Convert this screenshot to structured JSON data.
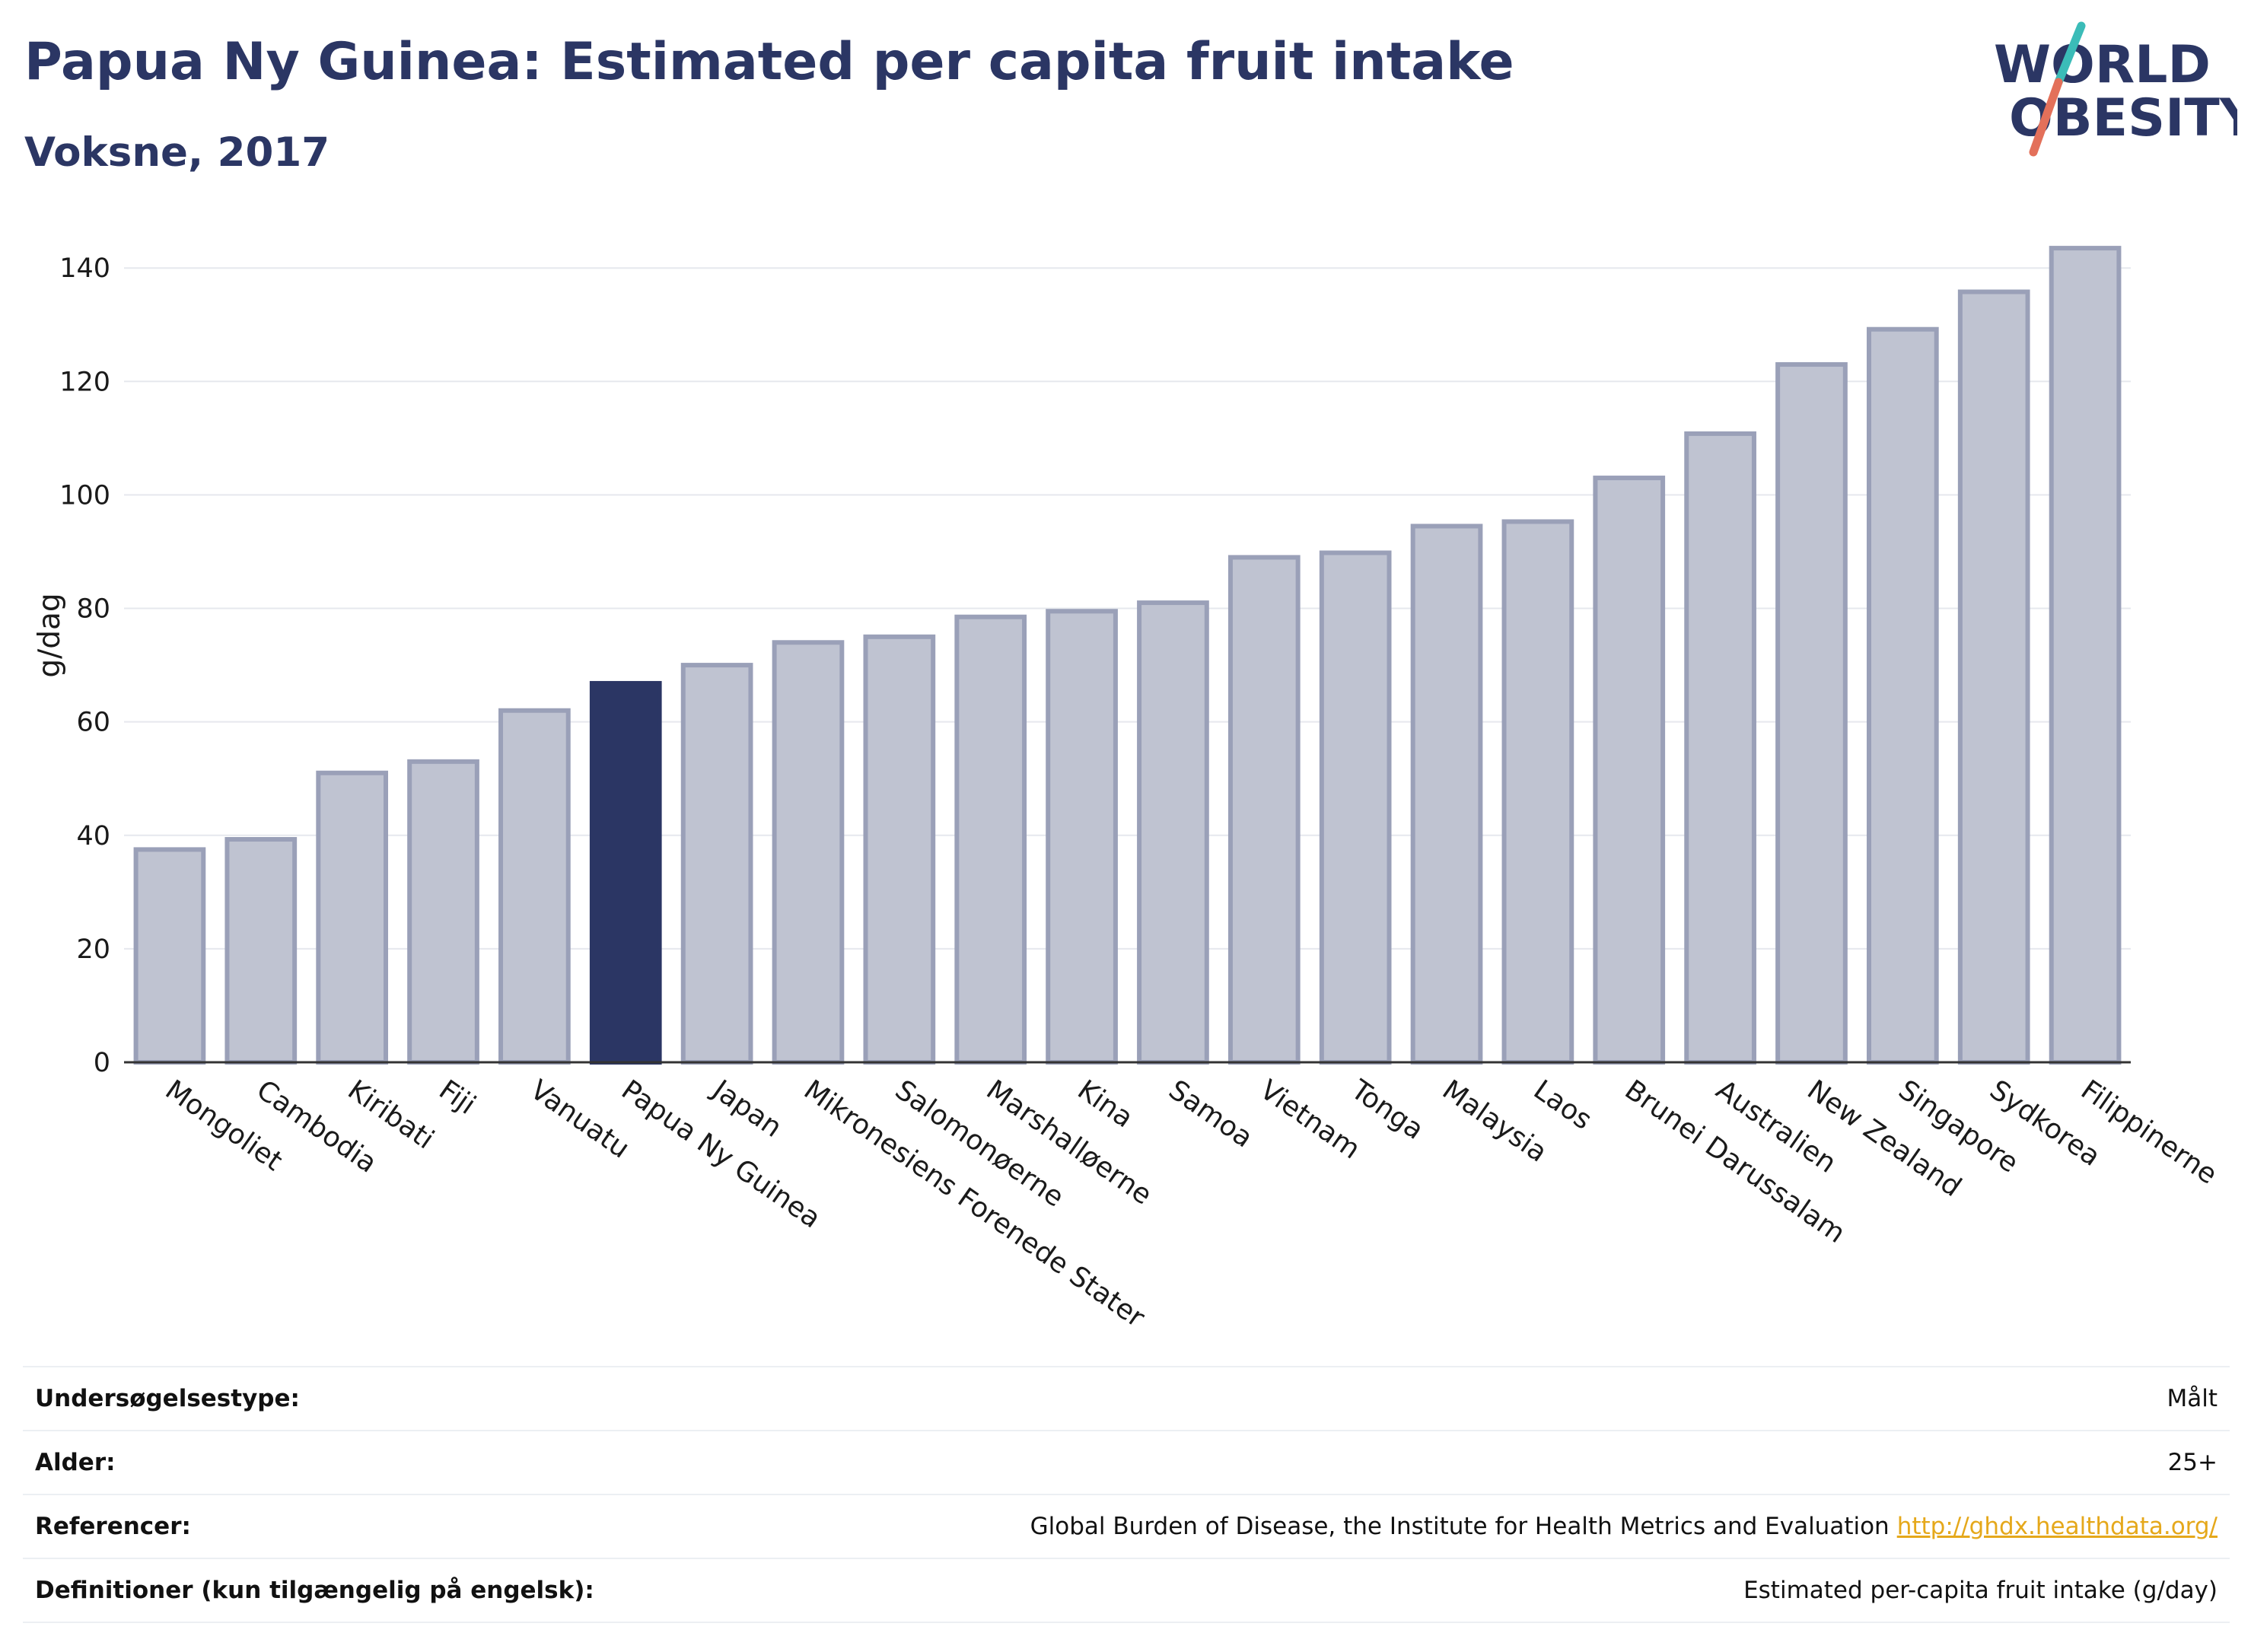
{
  "header": {
    "title": "Papua Ny Guinea: Estimated per capita fruit intake",
    "subtitle": "Voksne, 2017"
  },
  "logo": {
    "line1": "WORLD",
    "line2": "OBESITY",
    "colors": {
      "text": "#2b3664",
      "slash_teal": "#3bbcb8",
      "slash_red": "#e3705a"
    }
  },
  "colors": {
    "bar": "#bfc3d1",
    "bar_border": "#9aa0b8",
    "highlight": "#2b3664",
    "grid": "#e6e8ee",
    "link": "#e5a81b"
  },
  "chart_data": {
    "type": "bar",
    "title": "Papua Ny Guinea: Estimated per capita fruit intake",
    "subtitle": "Voksne, 2017",
    "ylabel": "g/dag",
    "ylim": [
      0,
      147
    ],
    "yticks": [
      0,
      20,
      40,
      60,
      80,
      100,
      120,
      140
    ],
    "grid": true,
    "highlight": "Papua Ny Guinea",
    "categories": [
      "Mongoliet",
      "Cambodia",
      "Kiribati",
      "Fiji",
      "Vanuatu",
      "Papua Ny Guinea",
      "Japan",
      "Mikronesiens Forenede Stater",
      "Salomonøerne",
      "Marshalløerne",
      "Kina",
      "Samoa",
      "Vietnam",
      "Tonga",
      "Malaysia",
      "Laos",
      "Brunei Darussalam",
      "Australien",
      "New Zealand",
      "Singapore",
      "Sydkorea",
      "Filippinerne"
    ],
    "values": [
      37.5,
      39.3,
      51,
      53,
      62,
      66.8,
      70,
      74,
      75,
      78.5,
      79.5,
      81,
      89,
      89.8,
      94.5,
      95.3,
      103,
      110.8,
      123,
      129.2,
      135.8,
      143.5
    ]
  },
  "meta": [
    {
      "label": "Undersøgelsestype:",
      "value": "Målt"
    },
    {
      "label": "Alder:",
      "value": "25+"
    },
    {
      "label": "Referencer:",
      "value": "Global Burden of Disease, the Institute for Health Metrics and Evaluation",
      "link": "http://ghdx.healthdata.org/"
    },
    {
      "label": "Definitioner (kun tilgængelig på engelsk):",
      "value": "Estimated per-capita fruit intake (g/day)"
    }
  ]
}
